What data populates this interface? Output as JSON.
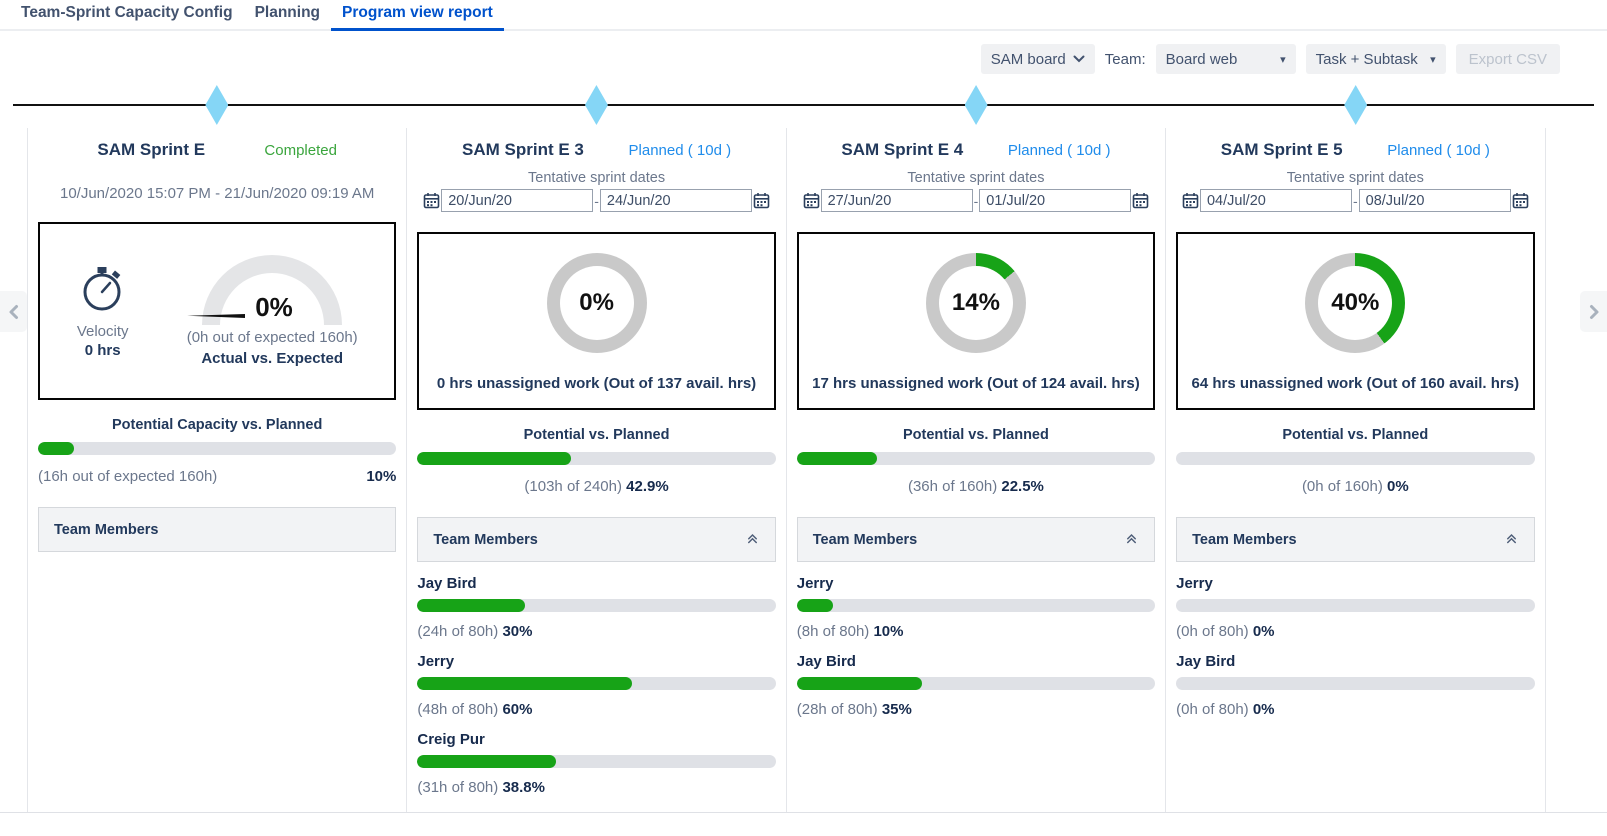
{
  "nav": {
    "tabs": [
      {
        "label": "Team-Sprint Capacity Config",
        "active": false
      },
      {
        "label": "Planning",
        "active": false
      },
      {
        "label": "Program view report",
        "active": true
      }
    ]
  },
  "toolbar": {
    "board_dropdown": "SAM board",
    "team_label": "Team:",
    "team_dropdown": "Board web",
    "scope_dropdown": "Task + Subtask",
    "export_button": "Export CSV"
  },
  "colors": {
    "progress_green": "#17a317",
    "donut_gray": "#c9c9c9",
    "completed_green": "#3aa53d",
    "planned_blue": "#1f8ceb",
    "active_tab_blue": "#0052cc",
    "diamond_blue": "#85d6f6"
  },
  "dates_separator": "-",
  "sprints": [
    {
      "name": "SAM Sprint E",
      "status": "Completed",
      "status_type": "completed",
      "date_range": "10/Jun/2020 15:07 PM - 21/Jun/2020 09:19 AM",
      "velocity": {
        "label": "Velocity",
        "value": "0 hrs",
        "gauge_percent": 0,
        "gauge_label": "0%",
        "gauge_detail": "(0h out of expected 160h)",
        "gauge_caption": "Actual vs. Expected"
      },
      "capacity": {
        "title": "Potential Capacity vs. Planned",
        "percent": 10,
        "detail": "(16h out of expected 160h)",
        "percent_label": "10%"
      },
      "team": {
        "header": "Team Members",
        "collapsed": true,
        "members": []
      }
    },
    {
      "name": "SAM Sprint E 3",
      "status": "Planned ( 10d )",
      "status_type": "planned",
      "tentative_label": "Tentative sprint dates",
      "dates": {
        "start": "20/Jun/20",
        "end": "24/Jun/20"
      },
      "donut": {
        "percent": 0,
        "label": "0%",
        "caption": "0 hrs unassigned work (Out of 137 avail. hrs)"
      },
      "capacity": {
        "title": "Potential vs. Planned",
        "percent": 42.9,
        "detail": "(103h of 240h)",
        "percent_label": "42.9%"
      },
      "team": {
        "header": "Team Members",
        "collapsed": false,
        "members": [
          {
            "name": "Jay Bird",
            "percent": 30,
            "detail": "(24h of 80h)",
            "percent_label": "30%"
          },
          {
            "name": "Jerry",
            "percent": 60,
            "detail": "(48h of 80h)",
            "percent_label": "60%"
          },
          {
            "name": "Creig Pur",
            "percent": 38.8,
            "detail": "(31h of 80h)",
            "percent_label": "38.8%"
          }
        ]
      }
    },
    {
      "name": "SAM Sprint E 4",
      "status": "Planned ( 10d )",
      "status_type": "planned",
      "tentative_label": "Tentative sprint dates",
      "dates": {
        "start": "27/Jun/20",
        "end": "01/Jul/20"
      },
      "donut": {
        "percent": 14,
        "label": "14%",
        "caption": "17 hrs unassigned work (Out of 124 avail. hrs)"
      },
      "capacity": {
        "title": "Potential vs. Planned",
        "percent": 22.5,
        "detail": "(36h of 160h)",
        "percent_label": "22.5%"
      },
      "team": {
        "header": "Team Members",
        "collapsed": false,
        "members": [
          {
            "name": "Jerry",
            "percent": 10,
            "detail": "(8h of 80h)",
            "percent_label": "10%"
          },
          {
            "name": "Jay Bird",
            "percent": 35,
            "detail": "(28h of 80h)",
            "percent_label": "35%"
          }
        ]
      }
    },
    {
      "name": "SAM Sprint E 5",
      "status": "Planned ( 10d )",
      "status_type": "planned",
      "tentative_label": "Tentative sprint dates",
      "dates": {
        "start": "04/Jul/20",
        "end": "08/Jul/20"
      },
      "donut": {
        "percent": 40,
        "label": "40%",
        "caption": "64 hrs unassigned work (Out of 160 avail. hrs)"
      },
      "capacity": {
        "title": "Potential vs. Planned",
        "percent": 0,
        "detail": "(0h of 160h)",
        "percent_label": "0%"
      },
      "team": {
        "header": "Team Members",
        "collapsed": false,
        "members": [
          {
            "name": "Jerry",
            "percent": 0,
            "detail": "(0h of 80h)",
            "percent_label": "0%"
          },
          {
            "name": "Jay Bird",
            "percent": 0,
            "detail": "(0h of 80h)",
            "percent_label": "0%"
          }
        ]
      }
    }
  ]
}
